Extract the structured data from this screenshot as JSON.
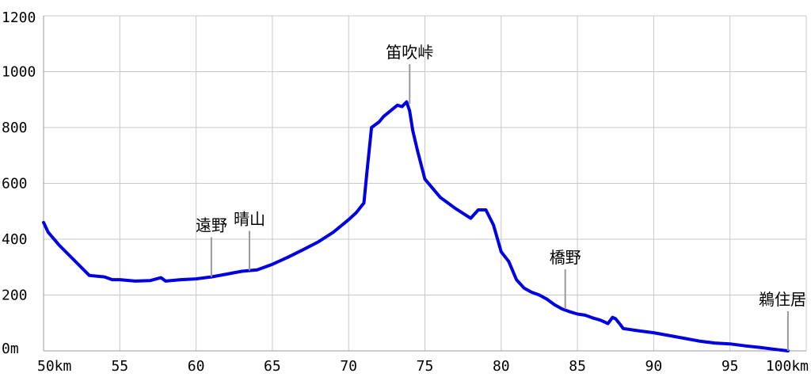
{
  "chart_data": {
    "type": "line",
    "xlabel": "",
    "ylabel": "",
    "xlim": [
      50,
      100
    ],
    "ylim": [
      0,
      1200
    ],
    "grid": true,
    "line_color": "#0000e0",
    "grid_color": "#c8c8c8",
    "x_ticks": [
      {
        "value": 50,
        "label": "50km"
      },
      {
        "value": 55,
        "label": "55"
      },
      {
        "value": 60,
        "label": "60"
      },
      {
        "value": 65,
        "label": "65"
      },
      {
        "value": 70,
        "label": "70"
      },
      {
        "value": 75,
        "label": "75"
      },
      {
        "value": 80,
        "label": "80"
      },
      {
        "value": 85,
        "label": "85"
      },
      {
        "value": 90,
        "label": "90"
      },
      {
        "value": 95,
        "label": "95"
      },
      {
        "value": 100,
        "label": "100km"
      }
    ],
    "y_ticks": [
      {
        "value": 0,
        "label": "0m"
      },
      {
        "value": 200,
        "label": "200"
      },
      {
        "value": 400,
        "label": "400"
      },
      {
        "value": 600,
        "label": "600"
      },
      {
        "value": 800,
        "label": "800"
      },
      {
        "value": 1000,
        "label": "1000"
      },
      {
        "value": 1200,
        "label": "1200"
      }
    ],
    "series": [
      {
        "x": [
          50.0,
          50.3,
          51.0,
          52.0,
          53.0,
          54.0,
          54.5,
          55.0,
          56.0,
          57.0,
          57.7,
          58.0,
          59.0,
          60.0,
          61.0,
          62.0,
          63.0,
          64.0,
          65.0,
          66.0,
          67.0,
          68.0,
          69.0,
          70.0,
          70.5,
          71.0,
          71.2,
          71.5,
          72.0,
          72.3,
          72.8,
          73.2,
          73.5,
          73.8,
          74.0,
          74.2,
          74.5,
          75.0,
          76.0,
          77.0,
          78.0,
          78.5,
          79.0,
          79.5,
          80.0,
          80.5,
          81.0,
          81.5,
          82.0,
          82.5,
          83.0,
          83.5,
          84.0,
          84.5,
          85.0,
          85.5,
          86.0,
          86.5,
          87.0,
          87.3,
          87.5,
          87.8,
          88.0,
          89.0,
          90.0,
          91.0,
          92.0,
          93.0,
          94.0,
          95.0,
          96.0,
          97.0,
          98.0,
          98.8
        ],
        "y": [
          460,
          425,
          380,
          325,
          270,
          265,
          255,
          255,
          250,
          252,
          262,
          250,
          255,
          258,
          265,
          275,
          285,
          290,
          310,
          335,
          362,
          390,
          425,
          470,
          495,
          530,
          640,
          800,
          820,
          840,
          862,
          880,
          875,
          892,
          860,
          790,
          720,
          615,
          550,
          510,
          475,
          505,
          505,
          450,
          355,
          320,
          255,
          225,
          210,
          200,
          185,
          165,
          150,
          140,
          132,
          128,
          118,
          110,
          98,
          120,
          115,
          95,
          80,
          72,
          65,
          55,
          45,
          35,
          28,
          25,
          18,
          12,
          5,
          0
        ]
      }
    ],
    "annotations": [
      {
        "label": "遠野",
        "x": 61.0,
        "y": 265
      },
      {
        "label": "晴山",
        "x": 63.5,
        "y": 288
      },
      {
        "label": "笛吹峠",
        "x": 74.0,
        "y": 885
      },
      {
        "label": "橋野",
        "x": 84.2,
        "y": 150
      },
      {
        "label": "鵜住居",
        "x": 98.8,
        "y": 0
      }
    ]
  }
}
